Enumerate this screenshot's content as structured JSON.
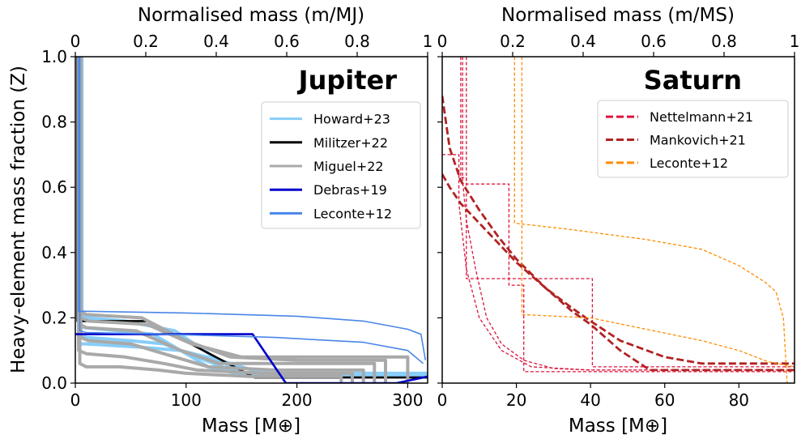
{
  "chart_data": [
    {
      "type": "line",
      "title": "Jupiter",
      "xlabel": "Mass [M⊕]",
      "ylabel": "Heavy-element mass fraction (Z)",
      "top_xlabel": "Normalised mass (m/MJ)",
      "xlim": [
        0,
        318
      ],
      "ylim": [
        0,
        1.0
      ],
      "x_ticks": [
        "0",
        "100",
        "200",
        "300"
      ],
      "y_ticks": [
        "0.0",
        "0.2",
        "0.4",
        "0.6",
        "0.8",
        "1.0"
      ],
      "top_ticks": [
        "0",
        "0.2",
        "0.4",
        "0.6",
        "0.8",
        "1"
      ],
      "legend_position": "upper right",
      "series": [
        {
          "name": "Howard+23",
          "color": "#87cefa",
          "dash": "solid",
          "curves": [
            {
              "x": [
                0,
                4,
                4,
                8,
                40,
                70,
                100,
                120,
                145,
                175,
                318
              ],
              "y": [
                1.0,
                1.0,
                0.18,
                0.17,
                0.16,
                0.15,
                0.09,
                0.05,
                0.03,
                0.02,
                0.02
              ]
            },
            {
              "x": [
                0,
                5,
                5,
                10,
                50,
                80,
                110,
                140,
                170,
                318
              ],
              "y": [
                1.0,
                1.0,
                0.15,
                0.14,
                0.13,
                0.12,
                0.08,
                0.04,
                0.02,
                0.02
              ]
            },
            {
              "x": [
                0,
                3,
                3,
                10,
                60,
                95,
                130,
                160,
                190,
                318
              ],
              "y": [
                1.0,
                1.0,
                0.12,
                0.12,
                0.11,
                0.1,
                0.07,
                0.04,
                0.02,
                0.02
              ]
            },
            {
              "x": [
                0,
                6,
                6,
                12,
                45,
                90,
                125,
                150,
                318
              ],
              "y": [
                1.0,
                1.0,
                0.21,
                0.2,
                0.19,
                0.16,
                0.08,
                0.03,
                0.03
              ]
            }
          ]
        },
        {
          "name": "Militzer+22",
          "color": "#000000",
          "dash": "solid",
          "curves": [
            {
              "x": [
                2,
                2,
                65,
                162,
                318
              ],
              "y": [
                1.0,
                0.19,
                0.19,
                0.017,
                0.017
              ]
            }
          ]
        },
        {
          "name": "Miguel+22",
          "color": "#a9a9a9",
          "dash": "solid",
          "curves": [
            {
              "x": [
                4,
                4,
                10,
                60,
                100,
                140,
                200,
                280,
                280
              ],
              "y": [
                1.0,
                0.22,
                0.21,
                0.2,
                0.13,
                0.08,
                0.07,
                0.07,
                0.0
              ]
            },
            {
              "x": [
                4,
                4,
                10,
                55,
                95,
                130,
                190,
                270,
                270
              ],
              "y": [
                1.0,
                0.18,
                0.17,
                0.16,
                0.1,
                0.06,
                0.06,
                0.06,
                0.0
              ]
            },
            {
              "x": [
                5,
                5,
                12,
                50,
                90,
                120,
                180,
                260,
                260
              ],
              "y": [
                1.0,
                0.14,
                0.13,
                0.12,
                0.08,
                0.05,
                0.04,
                0.04,
                0.0
              ]
            },
            {
              "x": [
                3,
                3,
                10,
                45,
                80,
                110,
                170,
                250,
                250
              ],
              "y": [
                1.0,
                0.1,
                0.09,
                0.08,
                0.06,
                0.04,
                0.03,
                0.03,
                0.0
              ]
            },
            {
              "x": [
                5,
                5,
                12,
                65,
                105,
                150,
                220,
                300,
                300
              ],
              "y": [
                1.0,
                0.2,
                0.19,
                0.18,
                0.12,
                0.08,
                0.08,
                0.08,
                0.0
              ]
            },
            {
              "x": [
                4,
                4,
                10,
                40,
                75,
                100,
                160,
                240,
                240
              ],
              "y": [
                1.0,
                0.06,
                0.05,
                0.05,
                0.04,
                0.03,
                0.02,
                0.02,
                0.0
              ]
            }
          ]
        },
        {
          "name": "Debras+19",
          "color": "#0000cd",
          "dash": "solid",
          "curves": [
            {
              "x": [
                0,
                160,
                190,
                290,
                318
              ],
              "y": [
                0.15,
                0.15,
                0.0,
                0.0,
                0.02
              ]
            }
          ]
        },
        {
          "name": "Leconte+12",
          "color": "#4a86e8",
          "dash": "solid",
          "curves": [
            {
              "x": [
                3,
                3,
                10,
                100,
                200,
                260,
                300,
                312,
                316
              ],
              "y": [
                1.0,
                0.22,
                0.22,
                0.215,
                0.205,
                0.19,
                0.165,
                0.15,
                0.07
              ]
            },
            {
              "x": [
                4,
                4,
                10,
                80,
                180,
                260,
                300,
                314
              ],
              "y": [
                1.0,
                0.16,
                0.155,
                0.15,
                0.14,
                0.125,
                0.1,
                0.06
              ]
            }
          ]
        }
      ]
    },
    {
      "type": "line",
      "title": "Saturn",
      "xlabel": "Mass [M⊕]",
      "ylabel": "",
      "top_xlabel": "Normalised mass (m/MS)",
      "xlim": [
        0,
        95
      ],
      "ylim": [
        0,
        1.0
      ],
      "x_ticks": [
        "0",
        "20",
        "40",
        "60",
        "80"
      ],
      "y_ticks": [],
      "top_ticks": [
        "0",
        "0.2",
        "0.4",
        "0.6",
        "0.8",
        "1"
      ],
      "legend_position": "upper right",
      "series": [
        {
          "name": "Nettelmann+21",
          "color": "#dc143c",
          "dash": "dashed",
          "curves": [
            {
              "x": [
                5,
                5,
                6.5,
                6.5,
                40.5,
                40.5,
                95
              ],
              "y": [
                1.0,
                0.63,
                0.63,
                0.32,
                0.32,
                0.05,
                0.05
              ]
            },
            {
              "x": [
                5.5,
                5.5,
                6.5,
                9,
                12,
                16,
                22,
                30,
                40,
                60,
                95
              ],
              "y": [
                1.0,
                0.62,
                0.5,
                0.35,
                0.2,
                0.12,
                0.07,
                0.045,
                0.04,
                0.04,
                0.04
              ]
            },
            {
              "x": [
                6.5,
                6.5,
                18,
                18,
                22,
                22,
                95
              ],
              "y": [
                1.0,
                0.61,
                0.61,
                0.3,
                0.3,
                0.035,
                0.035
              ]
            },
            {
              "x": [
                0,
                4.5,
                4.5,
                6.5,
                10,
                16,
                24,
                40,
                95
              ],
              "y": [
                0.7,
                0.7,
                0.55,
                0.35,
                0.2,
                0.1,
                0.05,
                0.04,
                0.04
              ]
            }
          ]
        },
        {
          "name": "Mankovich+21",
          "color": "#b22222",
          "dash": "dashed",
          "curves": [
            {
              "x": [
                0,
                2,
                5,
                10,
                15,
                20,
                28,
                35,
                40,
                48,
                56,
                95
              ],
              "y": [
                0.88,
                0.72,
                0.62,
                0.53,
                0.45,
                0.38,
                0.29,
                0.22,
                0.18,
                0.1,
                0.04,
                0.04
              ]
            },
            {
              "x": [
                0,
                2,
                5,
                10,
                15,
                20,
                28,
                35,
                40,
                48,
                60,
                70,
                95
              ],
              "y": [
                0.64,
                0.6,
                0.55,
                0.49,
                0.43,
                0.37,
                0.29,
                0.23,
                0.19,
                0.13,
                0.08,
                0.06,
                0.06
              ]
            }
          ]
        },
        {
          "name": "Leconte+12",
          "color": "#ff8c00",
          "dash": "dashed",
          "curves": [
            {
              "x": [
                19.5,
                19.5,
                35,
                55,
                70,
                80,
                87,
                90,
                92,
                93
              ],
              "y": [
                1.0,
                0.49,
                0.47,
                0.44,
                0.41,
                0.36,
                0.31,
                0.28,
                0.2,
                0.0
              ]
            },
            {
              "x": [
                21.5,
                21.5,
                40,
                55,
                70,
                80,
                88,
                95
              ],
              "y": [
                1.0,
                0.21,
                0.2,
                0.165,
                0.13,
                0.1,
                0.065,
                0.05
              ]
            }
          ]
        }
      ]
    }
  ]
}
